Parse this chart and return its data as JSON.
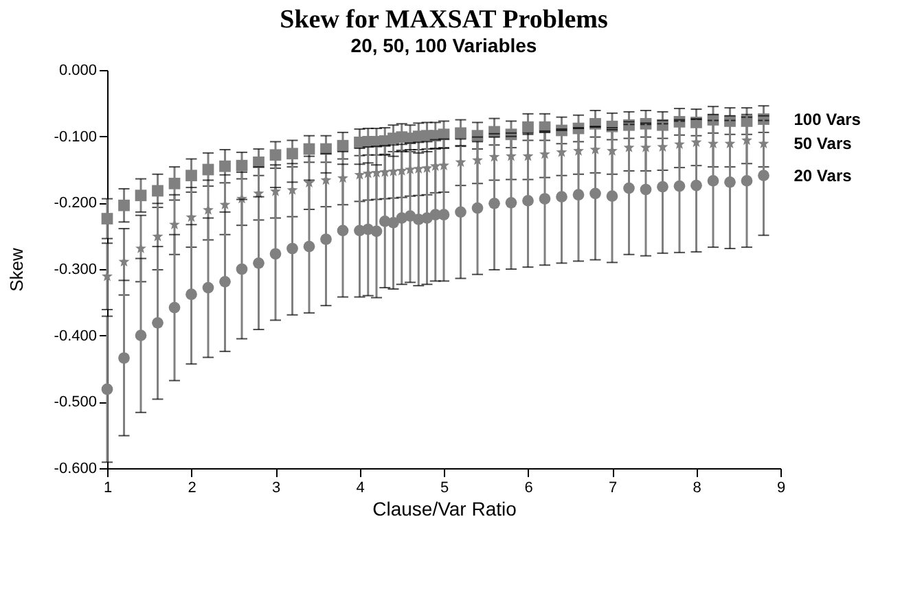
{
  "chart_data": {
    "type": "scatter",
    "title": "Skew for MAXSAT Problems",
    "subtitle": "20, 50, 100 Variables",
    "xlabel": "Clause/Var Ratio",
    "ylabel": "Skew",
    "x": [
      1.0,
      1.2,
      1.4,
      1.6,
      1.8,
      2.0,
      2.2,
      2.4,
      2.6,
      2.8,
      3.0,
      3.2,
      3.4,
      3.6,
      3.8,
      4.0,
      4.1,
      4.2,
      4.3,
      4.4,
      4.5,
      4.6,
      4.7,
      4.8,
      4.9,
      5.0,
      5.2,
      5.4,
      5.6,
      5.8,
      6.0,
      6.2,
      6.4,
      6.6,
      6.8,
      7.0,
      7.2,
      7.4,
      7.6,
      7.8,
      8.0,
      8.2,
      8.4,
      8.6,
      8.8
    ],
    "xlim": [
      1,
      9
    ],
    "xticks": [
      1,
      2,
      3,
      4,
      5,
      6,
      7,
      8,
      9
    ],
    "ylim": [
      -0.6,
      0
    ],
    "yticks": [
      {
        "value": -0.6,
        "label": "-0.600"
      },
      {
        "value": -0.5,
        "label": "-0.500"
      },
      {
        "value": -0.4,
        "label": "-0.400"
      },
      {
        "value": -0.3,
        "label": "-0.300"
      },
      {
        "value": -0.2,
        "label": "-0.200"
      },
      {
        "value": -0.1,
        "label": "-0.100"
      },
      {
        "value": 0,
        "label": "0.000"
      }
    ],
    "grid": false,
    "series": [
      {
        "name": "100 Vars",
        "color": "#808080",
        "marker": "square",
        "values": [
          -0.224,
          -0.204,
          -0.189,
          -0.182,
          -0.171,
          -0.159,
          -0.15,
          -0.145,
          -0.144,
          -0.139,
          -0.128,
          -0.126,
          -0.119,
          -0.119,
          -0.114,
          -0.109,
          -0.108,
          -0.108,
          -0.107,
          -0.103,
          -0.101,
          -0.103,
          -0.1,
          -0.099,
          -0.099,
          -0.097,
          -0.095,
          -0.099,
          -0.093,
          -0.097,
          -0.086,
          -0.086,
          -0.091,
          -0.088,
          -0.081,
          -0.085,
          -0.083,
          -0.081,
          -0.083,
          -0.078,
          -0.079,
          -0.075,
          -0.077,
          -0.077,
          -0.074
        ],
        "errors": [
          0.03,
          0.025,
          0.025,
          0.025,
          0.025,
          0.025,
          0.025,
          0.025,
          0.02,
          0.02,
          0.02,
          0.02,
          0.02,
          0.02,
          0.02,
          0.02,
          0.02,
          0.02,
          0.02,
          0.02,
          0.02,
          0.02,
          0.02,
          0.02,
          0.02,
          0.02,
          0.02,
          0.02,
          0.02,
          0.02,
          0.02,
          0.02,
          0.02,
          0.02,
          0.02,
          0.02,
          0.02,
          0.02,
          0.02,
          0.02,
          0.02,
          0.02,
          0.02,
          0.02,
          0.02
        ]
      },
      {
        "name": "50 Vars",
        "color": "#808080",
        "marker": "star",
        "values": [
          -0.311,
          -0.289,
          -0.269,
          -0.251,
          -0.233,
          -0.222,
          -0.211,
          -0.203,
          -0.194,
          -0.186,
          -0.183,
          -0.181,
          -0.17,
          -0.166,
          -0.163,
          -0.158,
          -0.156,
          -0.155,
          -0.154,
          -0.153,
          -0.152,
          -0.15,
          -0.149,
          -0.148,
          -0.145,
          -0.144,
          -0.139,
          -0.136,
          -0.131,
          -0.13,
          -0.13,
          -0.127,
          -0.124,
          -0.122,
          -0.12,
          -0.122,
          -0.117,
          -0.117,
          -0.116,
          -0.112,
          -0.109,
          -0.111,
          -0.111,
          -0.106,
          -0.111
        ],
        "errors": [
          0.05,
          0.05,
          0.05,
          0.05,
          0.045,
          0.045,
          0.045,
          0.045,
          0.04,
          0.04,
          0.04,
          0.04,
          0.04,
          0.04,
          0.04,
          0.04,
          0.04,
          0.04,
          0.04,
          0.04,
          0.04,
          0.04,
          0.04,
          0.04,
          0.04,
          0.04,
          0.035,
          0.035,
          0.035,
          0.035,
          0.035,
          0.035,
          0.035,
          0.035,
          0.035,
          0.035,
          0.035,
          0.035,
          0.035,
          0.035,
          0.035,
          0.035,
          0.035,
          0.035,
          0.035
        ]
      },
      {
        "name": "20 Vars",
        "color": "#808080",
        "marker": "circle",
        "values": [
          -0.481,
          -0.434,
          -0.4,
          -0.381,
          -0.358,
          -0.338,
          -0.328,
          -0.319,
          -0.3,
          -0.291,
          -0.277,
          -0.269,
          -0.266,
          -0.255,
          -0.242,
          -0.242,
          -0.24,
          -0.243,
          -0.228,
          -0.23,
          -0.223,
          -0.22,
          -0.225,
          -0.223,
          -0.218,
          -0.218,
          -0.214,
          -0.208,
          -0.201,
          -0.2,
          -0.197,
          -0.194,
          -0.191,
          -0.188,
          -0.186,
          -0.19,
          -0.178,
          -0.18,
          -0.176,
          -0.175,
          -0.174,
          -0.167,
          -0.169,
          -0.167,
          -0.159
        ],
        "errors": [
          0.11,
          0.117,
          0.116,
          0.115,
          0.11,
          0.105,
          0.105,
          0.105,
          0.105,
          0.1,
          0.1,
          0.1,
          0.1,
          0.1,
          0.1,
          0.1,
          0.1,
          0.1,
          0.1,
          0.1,
          0.1,
          0.1,
          0.1,
          0.1,
          0.1,
          0.1,
          0.1,
          0.1,
          0.1,
          0.1,
          0.1,
          0.1,
          0.1,
          0.1,
          0.1,
          0.1,
          0.1,
          0.1,
          0.1,
          0.1,
          0.1,
          0.1,
          0.1,
          0.1,
          0.09
        ]
      }
    ]
  }
}
